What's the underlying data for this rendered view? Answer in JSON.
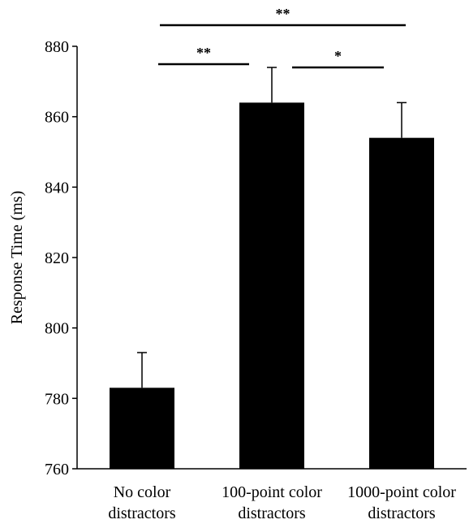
{
  "chart_data": {
    "type": "bar",
    "title": "",
    "xlabel": "",
    "ylabel": "Response Time (ms)",
    "ylim": [
      760,
      880
    ],
    "yticks": [
      760,
      780,
      800,
      820,
      840,
      860,
      880
    ],
    "categories": [
      [
        "No color",
        "distractors"
      ],
      [
        "100-point color",
        "distractors"
      ],
      [
        "1000-point color",
        "distractors"
      ]
    ],
    "values": [
      783,
      864,
      854
    ],
    "error_bars": [
      10,
      10,
      10
    ],
    "grid": false,
    "bar_color": "#000000",
    "significance": [
      {
        "from": 0,
        "to": 1,
        "label": "**"
      },
      {
        "from": 1,
        "to": 2,
        "label": "*"
      },
      {
        "from": 0,
        "to": 2,
        "label": "**"
      }
    ]
  }
}
